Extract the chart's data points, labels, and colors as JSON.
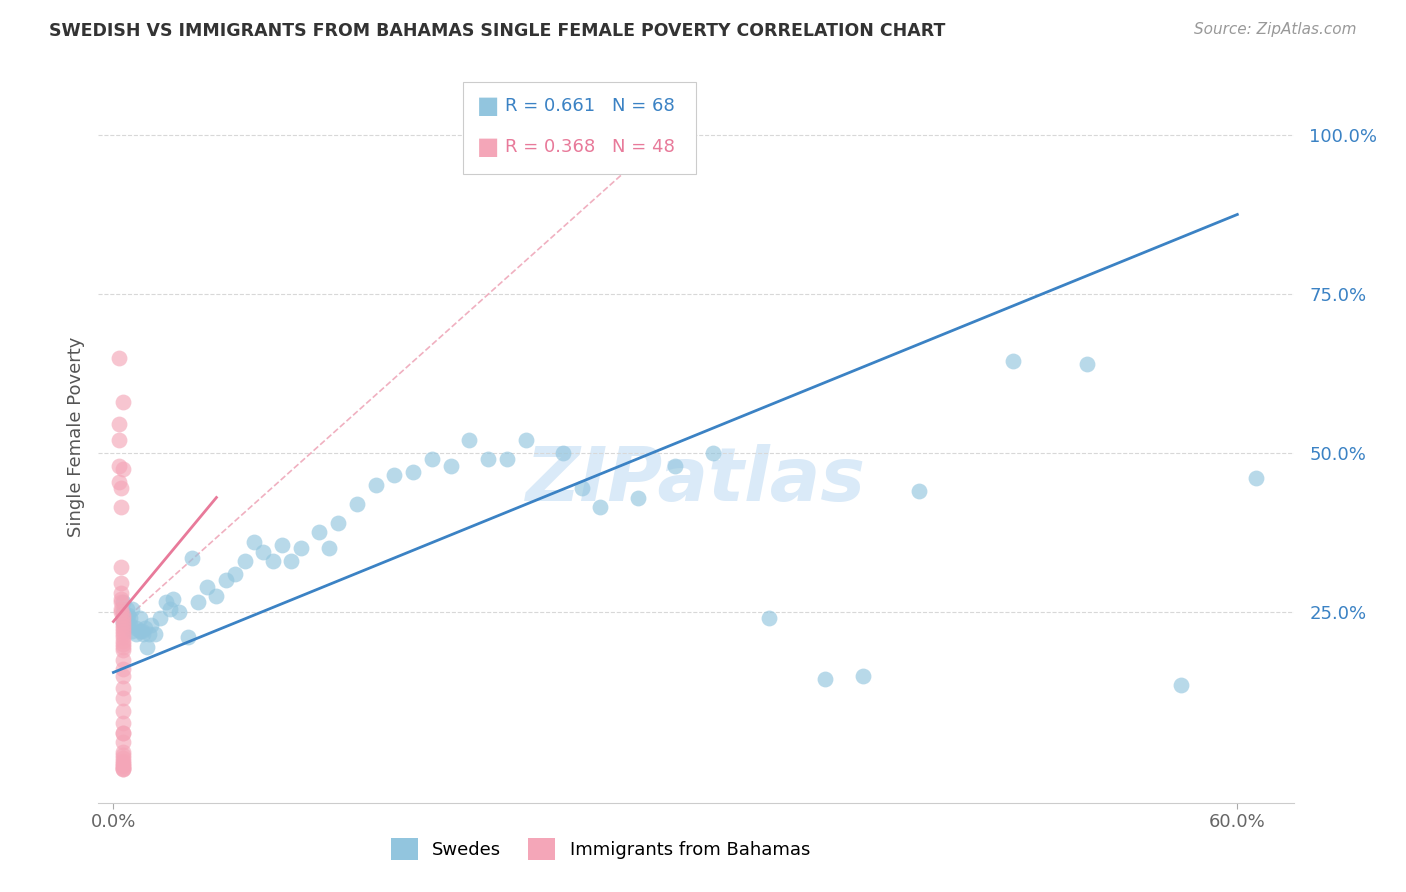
{
  "title": "SWEDISH VS IMMIGRANTS FROM BAHAMAS SINGLE FEMALE POVERTY CORRELATION CHART",
  "source": "Source: ZipAtlas.com",
  "ylabel": "Single Female Poverty",
  "xlim": [
    -0.008,
    0.63
  ],
  "ylim": [
    -0.05,
    1.1
  ],
  "blue_color": "#92c5de",
  "pink_color": "#f4a6b8",
  "blue_line_color": "#3b82c4",
  "pink_line_color": "#e87a9a",
  "diag_line_color": "#f0b0c0",
  "grid_color": "#d8d8d8",
  "watermark_color": "#daeaf8",
  "legend_blue_r": "R = 0.661",
  "legend_blue_n": "N = 68",
  "legend_pink_r": "R = 0.368",
  "legend_pink_n": "N = 48",
  "blue_scatter_x": [
    0.005,
    0.005,
    0.005,
    0.007,
    0.007,
    0.008,
    0.008,
    0.009,
    0.009,
    0.01,
    0.01,
    0.012,
    0.012,
    0.014,
    0.014,
    0.015,
    0.016,
    0.017,
    0.018,
    0.019,
    0.02,
    0.022,
    0.025,
    0.028,
    0.03,
    0.032,
    0.035,
    0.04,
    0.042,
    0.045,
    0.05,
    0.055,
    0.06,
    0.065,
    0.07,
    0.075,
    0.08,
    0.085,
    0.09,
    0.095,
    0.1,
    0.11,
    0.115,
    0.12,
    0.13,
    0.14,
    0.15,
    0.16,
    0.17,
    0.18,
    0.19,
    0.2,
    0.21,
    0.22,
    0.24,
    0.25,
    0.26,
    0.28,
    0.3,
    0.32,
    0.35,
    0.38,
    0.4,
    0.43,
    0.48,
    0.52,
    0.57,
    0.61
  ],
  "blue_scatter_y": [
    0.265,
    0.25,
    0.235,
    0.24,
    0.255,
    0.23,
    0.245,
    0.24,
    0.23,
    0.22,
    0.255,
    0.225,
    0.215,
    0.22,
    0.24,
    0.22,
    0.215,
    0.225,
    0.195,
    0.215,
    0.23,
    0.215,
    0.24,
    0.265,
    0.255,
    0.27,
    0.25,
    0.21,
    0.335,
    0.265,
    0.29,
    0.275,
    0.3,
    0.31,
    0.33,
    0.36,
    0.345,
    0.33,
    0.355,
    0.33,
    0.35,
    0.375,
    0.35,
    0.39,
    0.42,
    0.45,
    0.465,
    0.47,
    0.49,
    0.48,
    0.52,
    0.49,
    0.49,
    0.52,
    0.5,
    0.445,
    0.415,
    0.43,
    0.48,
    0.5,
    0.24,
    0.145,
    0.15,
    0.44,
    0.645,
    0.64,
    0.135,
    0.46
  ],
  "pink_scatter_x": [
    0.003,
    0.003,
    0.003,
    0.003,
    0.003,
    0.004,
    0.004,
    0.004,
    0.004,
    0.004,
    0.004,
    0.004,
    0.004,
    0.004,
    0.005,
    0.005,
    0.005,
    0.005,
    0.005,
    0.005,
    0.005,
    0.005,
    0.005,
    0.005,
    0.005,
    0.005,
    0.005,
    0.005,
    0.005,
    0.005,
    0.005,
    0.005,
    0.005,
    0.005,
    0.005,
    0.005,
    0.005,
    0.005,
    0.005,
    0.005,
    0.005,
    0.005,
    0.005,
    0.005,
    0.005,
    0.005,
    0.005,
    0.005
  ],
  "pink_scatter_y": [
    0.65,
    0.545,
    0.52,
    0.48,
    0.455,
    0.445,
    0.415,
    0.32,
    0.295,
    0.28,
    0.27,
    0.265,
    0.255,
    0.25,
    0.245,
    0.24,
    0.235,
    0.23,
    0.225,
    0.22,
    0.215,
    0.21,
    0.205,
    0.2,
    0.195,
    0.19,
    0.175,
    0.16,
    0.15,
    0.13,
    0.115,
    0.095,
    0.075,
    0.06,
    0.045,
    0.03,
    0.02,
    0.015,
    0.01,
    0.005,
    0.003,
    0.58,
    0.475,
    0.06,
    0.025,
    0.012,
    0.008,
    0.003
  ],
  "blue_line_x0": 0.0,
  "blue_line_y0": 0.155,
  "blue_line_x1": 0.6,
  "blue_line_y1": 0.875,
  "pink_line_x0": 0.0,
  "pink_line_y0": 0.235,
  "pink_line_x1": 0.055,
  "pink_line_y1": 0.43,
  "diag_line_x0": 0.005,
  "diag_line_y0": 0.235,
  "diag_line_x1": 0.295,
  "diag_line_y1": 1.0
}
